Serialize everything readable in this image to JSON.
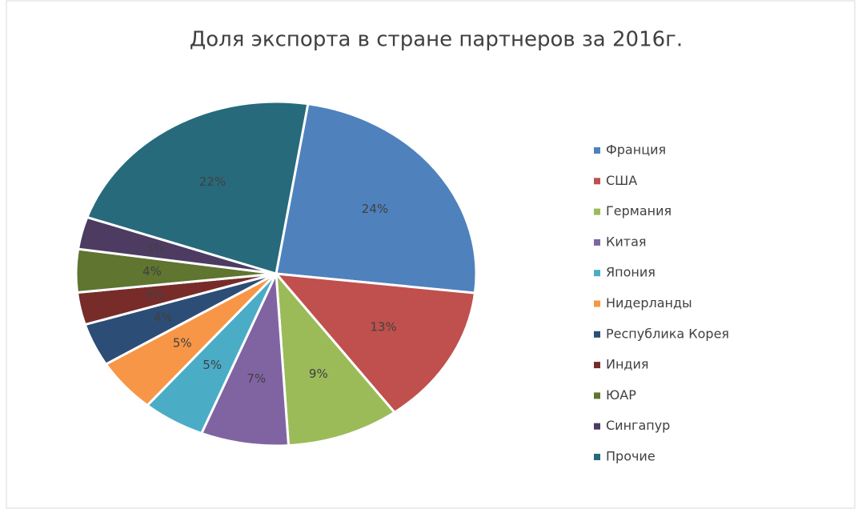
{
  "chart_data": {
    "type": "pie",
    "title": "Доля экспорта в стране партнеров за 2016г.",
    "categories": [
      "Франция",
      "США",
      "Германия",
      "Китая",
      "Япония",
      "Нидерланды",
      "Республика Корея",
      "Индия",
      "ЮАР",
      "Сингапур",
      "Прочие"
    ],
    "values": [
      24,
      13,
      9,
      7,
      5,
      5,
      4,
      3,
      4,
      3,
      22
    ],
    "value_labels": [
      "24%",
      "13%",
      "9%",
      "7%",
      "5%",
      "5%",
      "4%",
      "3%",
      "4%",
      "3%",
      "22%"
    ],
    "colors": [
      "#4f81bd",
      "#c0504d",
      "#9bbb59",
      "#8064a2",
      "#4bacc6",
      "#f79646",
      "#2c4d75",
      "#772c2a",
      "#5f7530",
      "#4d3b62",
      "#276a7c"
    ],
    "legend": "right"
  }
}
